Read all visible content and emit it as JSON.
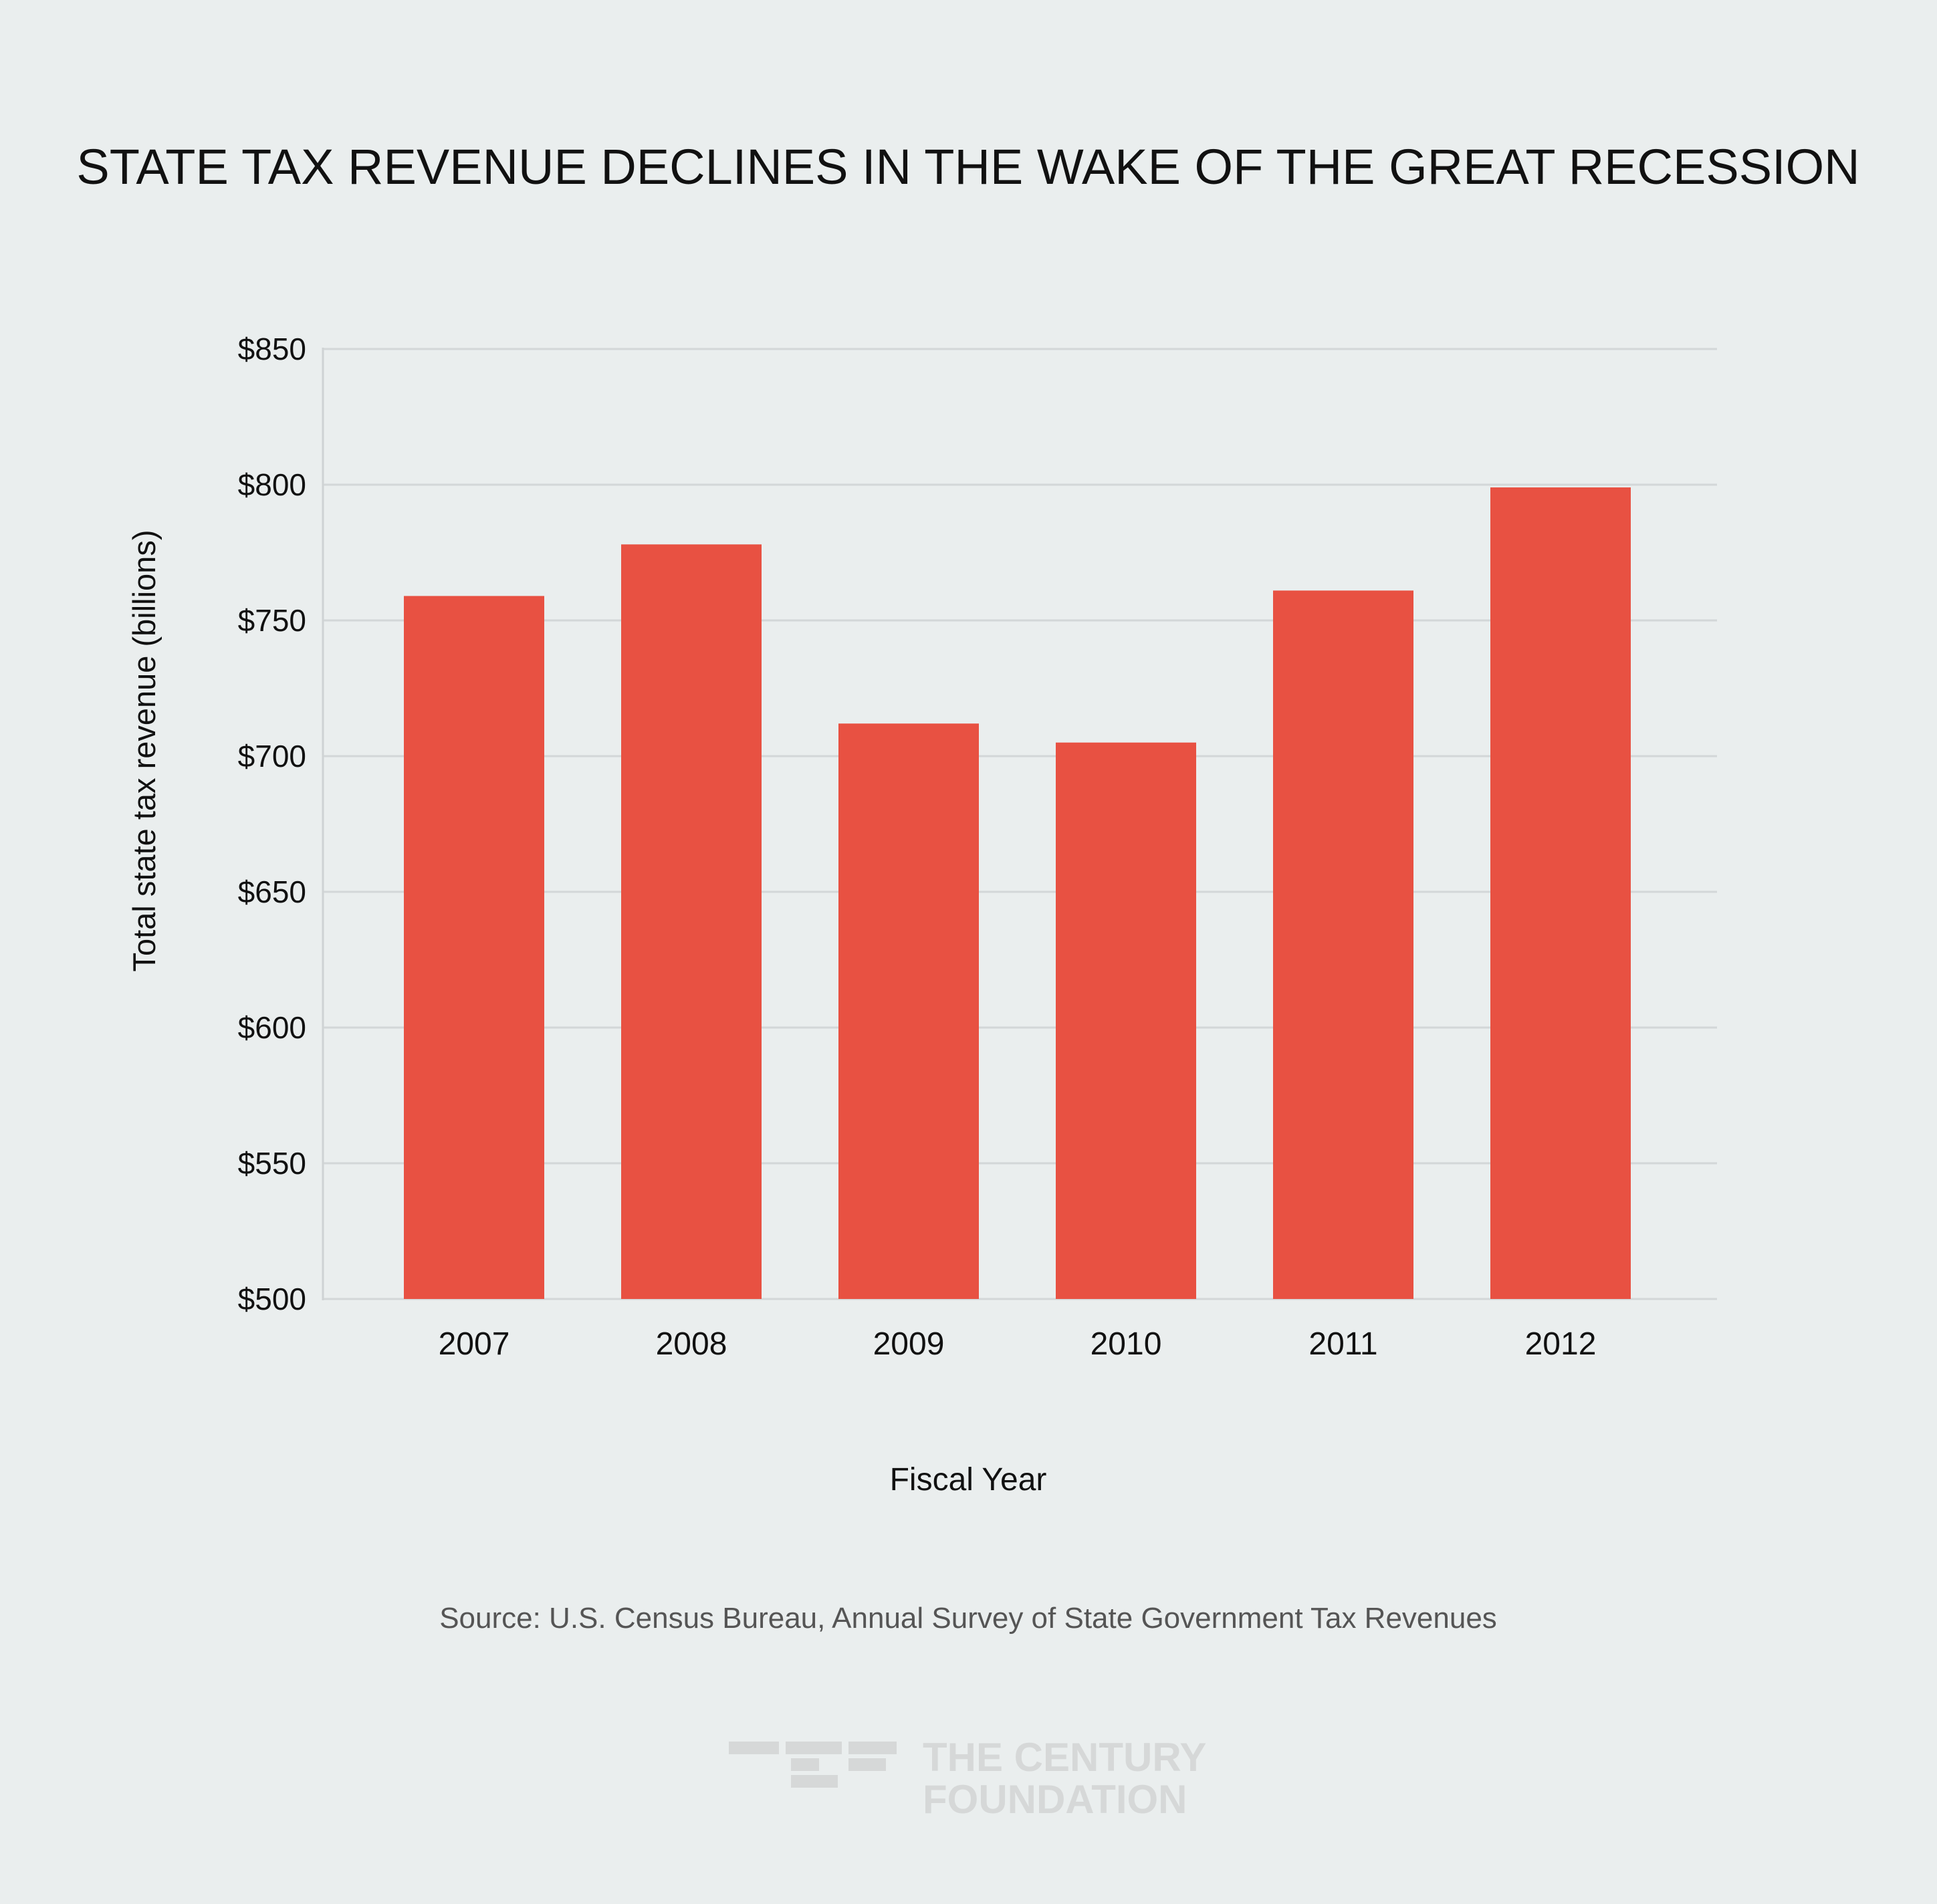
{
  "chart_data": {
    "type": "bar",
    "title": "STATE TAX REVENUE DECLINES IN THE WAKE OF THE GREAT RECESSION",
    "xlabel": "Fiscal Year",
    "ylabel": "Total state tax revenue (billions)",
    "categories": [
      "2007",
      "2008",
      "2009",
      "2010",
      "2011",
      "2012"
    ],
    "values": [
      759,
      778,
      712,
      705,
      761,
      799
    ],
    "ylim": [
      500,
      850
    ],
    "yticks": [
      500,
      550,
      600,
      650,
      700,
      750,
      800,
      850
    ],
    "ytick_labels": [
      "$500",
      "$550",
      "$600",
      "$650",
      "$700",
      "$750",
      "$800",
      "$850"
    ],
    "grid": true,
    "bar_color": "#e85142",
    "source": "Source: U.S. Census Bureau, Annual Survey of State Government Tax Revenues"
  },
  "logo": {
    "line1": "THE CENTURY",
    "line2": "FOUNDATION",
    "color": "#d6d8d8"
  },
  "colors": {
    "background": "#eaeeee",
    "gridline": "#d3d7d8",
    "text": "#111111",
    "source_text": "#555555"
  }
}
